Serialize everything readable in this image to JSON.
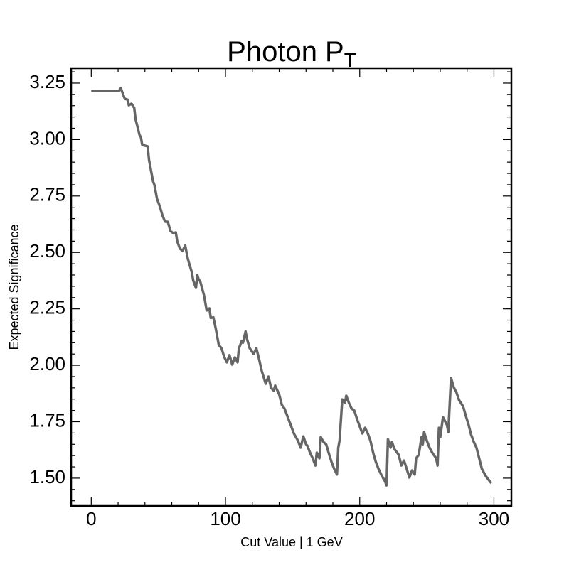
{
  "chart_data": {
    "type": "line",
    "title": "Photon P",
    "title_subscript": "T",
    "xlabel": "Cut Value | 1 GeV",
    "ylabel": "Expected Significance",
    "color": "#666666",
    "x": [
      0,
      20.6,
      22,
      25,
      27,
      28,
      30,
      32,
      33,
      36,
      37,
      38,
      42,
      43,
      46,
      47,
      49,
      51,
      53,
      55,
      57,
      59,
      61,
      63,
      64,
      66,
      68,
      70,
      72,
      74,
      75,
      76,
      78,
      79,
      80,
      81,
      84,
      86,
      88,
      89,
      91,
      93,
      95,
      97,
      99,
      101,
      103,
      105,
      107,
      109,
      110,
      111,
      112,
      113,
      115,
      116,
      118,
      121,
      123,
      125,
      127,
      130,
      132,
      134,
      136,
      137,
      140,
      142,
      144,
      148,
      151,
      154,
      156,
      158,
      160,
      161,
      163,
      165,
      167,
      168,
      170,
      171,
      173,
      175,
      177,
      179,
      181,
      183,
      184,
      185,
      187,
      189,
      190,
      192,
      194,
      196,
      198,
      200,
      202,
      204,
      206,
      208,
      210,
      212,
      214,
      216,
      219,
      220,
      221,
      223,
      224,
      226,
      229,
      231,
      233,
      235,
      237,
      239,
      241,
      242,
      244,
      246,
      247,
      248,
      250,
      252,
      254,
      257,
      258,
      259,
      260,
      262,
      265,
      266,
      268,
      270,
      272,
      274,
      277,
      279,
      281,
      283,
      285,
      287,
      289,
      291,
      294,
      296,
      298
    ],
    "values": [
      3.215,
      3.215,
      3.228,
      3.18,
      3.177,
      3.152,
      3.159,
      3.14,
      3.09,
      3.02,
      3.01,
      2.976,
      2.97,
      2.91,
      2.816,
      2.8,
      2.737,
      2.705,
      2.665,
      2.636,
      2.636,
      2.595,
      2.586,
      2.589,
      2.55,
      2.517,
      2.507,
      2.53,
      2.47,
      2.43,
      2.41,
      2.375,
      2.343,
      2.4,
      2.38,
      2.375,
      2.31,
      2.243,
      2.252,
      2.21,
      2.212,
      2.155,
      2.09,
      2.076,
      2.038,
      2.013,
      2.045,
      2.003,
      2.035,
      2.013,
      2.076,
      2.09,
      2.107,
      2.1,
      2.15,
      2.117,
      2.076,
      2.05,
      2.076,
      2.028,
      1.975,
      1.918,
      1.95,
      1.9,
      1.887,
      1.91,
      1.871,
      1.824,
      1.808,
      1.745,
      1.697,
      1.666,
      1.635,
      1.685,
      1.65,
      1.644,
      1.613,
      1.588,
      1.556,
      1.613,
      1.588,
      1.682,
      1.66,
      1.65,
      1.61,
      1.572,
      1.541,
      1.516,
      1.635,
      1.666,
      1.849,
      1.833,
      1.865,
      1.833,
      1.808,
      1.799,
      1.761,
      1.73,
      1.698,
      1.723,
      1.698,
      1.666,
      1.613,
      1.572,
      1.541,
      1.516,
      1.484,
      1.468,
      1.673,
      1.635,
      1.66,
      1.628,
      1.604,
      1.556,
      1.578,
      1.541,
      1.503,
      1.534,
      1.516,
      1.588,
      1.604,
      1.682,
      1.65,
      1.704,
      1.666,
      1.635,
      1.613,
      1.588,
      1.556,
      1.723,
      1.682,
      1.77,
      1.736,
      1.704,
      1.944,
      1.903,
      1.881,
      1.846,
      1.818,
      1.777,
      1.739,
      1.692,
      1.66,
      1.635,
      1.588,
      1.541,
      1.509,
      1.493,
      1.478
    ],
    "xlim": [
      -15,
      313
    ],
    "ylim": [
      1.377,
      3.316
    ],
    "xticks": [
      0,
      100,
      200,
      300
    ],
    "xticks_minor": [
      20,
      40,
      60,
      80,
      120,
      140,
      160,
      180,
      220,
      240,
      260,
      280
    ],
    "yticks": [
      {
        "value": 1.5,
        "label": "1.50"
      },
      1.75,
      {
        "value": 2,
        "label": "2.00"
      },
      2.25,
      {
        "value": 2.5,
        "label": "2.50"
      },
      2.75,
      {
        "value": 3,
        "label": "3.00"
      },
      3.25
    ],
    "yticks_minor": [
      1.4,
      1.45,
      1.55,
      1.6,
      1.65,
      1.7,
      1.8,
      1.85,
      1.9,
      1.95,
      2.05,
      2.1,
      2.15,
      2.2,
      2.3,
      2.35,
      2.4,
      2.45,
      2.55,
      2.6,
      2.65,
      2.7,
      2.8,
      2.85,
      2.9,
      2.95,
      3.05,
      3.1,
      3.15,
      3.2,
      3.3
    ]
  }
}
